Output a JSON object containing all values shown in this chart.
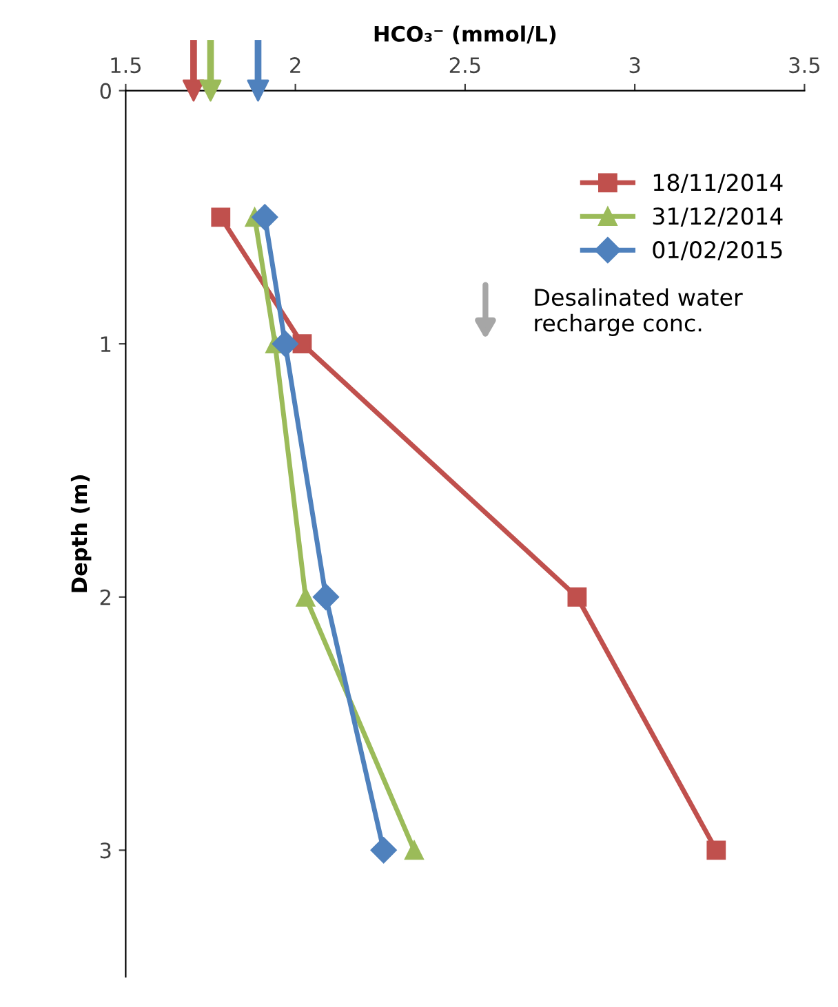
{
  "chart_data": {
    "type": "line",
    "xlabel": "HCO₃⁻ (mmol/L)",
    "ylabel": "Depth (m)",
    "xlim": [
      1.5,
      3.5
    ],
    "xticks": [
      1.5,
      2,
      2.5,
      3,
      3.5
    ],
    "ylim": [
      3.5,
      0
    ],
    "yticks": [
      0,
      1,
      2,
      3
    ],
    "grid": false,
    "legend": "top right",
    "line_style": "solid",
    "series": [
      {
        "name": "18/11/2014",
        "color": "#c0504d",
        "marker": "square",
        "x": [
          1.78,
          2.02,
          2.83,
          3.24
        ],
        "values": [
          0.5,
          1,
          2,
          3
        ]
      },
      {
        "name": "31/12/2014",
        "color": "#9bbb59",
        "marker": "triangle",
        "x": [
          1.88,
          1.94,
          2.03,
          2.35
        ],
        "values": [
          0.5,
          1,
          2,
          3
        ]
      },
      {
        "name": "01/02/2015",
        "color": "#4f81bd",
        "marker": "diamond",
        "x": [
          1.91,
          1.97,
          2.09,
          2.26
        ],
        "values": [
          0.5,
          1,
          2,
          3
        ]
      },
      {
        "type": "scatter",
        "colors": [
          "#c0504d",
          "#9bbb59",
          "#4f81bd"
        ],
        "x": [
          1.7,
          1.75,
          1.89
        ],
        "values": [
          0,
          0,
          0
        ]
      }
    ],
    "annotations": [
      "Desalinated water\nrecharge conc."
    ]
  }
}
